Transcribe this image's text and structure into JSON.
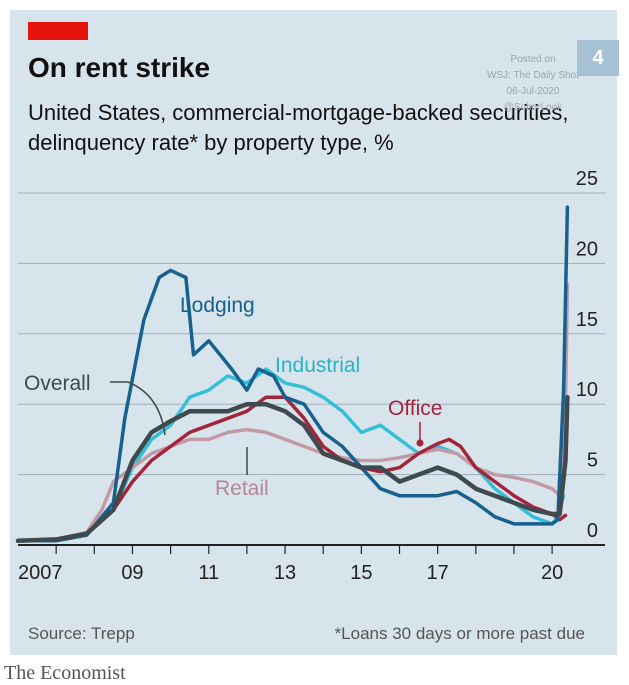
{
  "header": {
    "title": "On rent strike",
    "subtitle": "United States, commercial-mortgage-backed securities, delinquency rate* by property type, %"
  },
  "watermark": {
    "line1": "Posted on",
    "line2": "WSJ: The Daily Shot",
    "line3": "06-Jul-2020",
    "line4": "@SoberLook",
    "badge": "4"
  },
  "footer": {
    "source": "Source: Trepp",
    "footnote": "*Loans 30 days or more past due",
    "brand": "The Economist"
  },
  "colors": {
    "background": "#d8e4ec",
    "brand_red": "#e3120b",
    "Lodging": "#17618f",
    "Industrial": "#33c0d6",
    "Office": "#a3253b",
    "Retail": "#c29aa6",
    "Overall": "#3f4a4f"
  },
  "chart_data": {
    "type": "line",
    "title": "On rent strike",
    "subtitle": "United States, commercial-mortgage-backed securities, delinquency rate* by property type, %",
    "ylabel": "%",
    "ylim": [
      0,
      25
    ],
    "yticks": [
      0,
      5,
      10,
      15,
      20,
      25
    ],
    "y_axis_side": "right",
    "xlim": [
      2006.0,
      2020.6
    ],
    "xticks": [
      {
        "value": 2007,
        "label": "2007"
      },
      {
        "value": 2009,
        "label": "09"
      },
      {
        "value": 2011,
        "label": "11"
      },
      {
        "value": 2013,
        "label": "13"
      },
      {
        "value": 2015,
        "label": "15"
      },
      {
        "value": 2017,
        "label": "17"
      },
      {
        "value": 2020,
        "label": "20"
      }
    ],
    "grid": true,
    "series": [
      {
        "name": "Industrial",
        "x": [
          2006,
          2007,
          2007.8,
          2008.5,
          2009,
          2009.5,
          2010,
          2010.5,
          2011,
          2011.5,
          2012,
          2012.5,
          2013,
          2013.5,
          2014,
          2014.5,
          2015,
          2015.5,
          2016,
          2016.5,
          2017,
          2017.5,
          2018,
          2018.5,
          2019,
          2019.5,
          2020,
          2020.15,
          2020.3
        ],
        "y": [
          0.3,
          0.4,
          0.8,
          2.5,
          5.5,
          7.5,
          8.5,
          10.5,
          11,
          12,
          11.5,
          12.5,
          11.5,
          11.2,
          10.5,
          9.5,
          8,
          8.5,
          7.5,
          6.5,
          7,
          6.5,
          5.5,
          4,
          3,
          2,
          1.5,
          2,
          3.5
        ]
      },
      {
        "name": "Retail",
        "x": [
          2006,
          2007,
          2007.8,
          2008.2,
          2008.5,
          2009,
          2009.5,
          2010,
          2010.5,
          2011,
          2011.5,
          2012,
          2012.5,
          2013,
          2013.5,
          2014,
          2014.5,
          2015,
          2015.5,
          2016,
          2016.5,
          2017,
          2017.5,
          2018,
          2018.5,
          2019,
          2019.5,
          2020,
          2020.2,
          2020.35,
          2020.4
        ],
        "y": [
          0.3,
          0.4,
          0.9,
          2.5,
          4.5,
          5.5,
          6.5,
          7,
          7.5,
          7.5,
          8,
          8.2,
          8,
          7.5,
          7,
          6.5,
          6.2,
          6,
          6,
          6.2,
          6.5,
          6.8,
          6.5,
          5.5,
          5,
          4.8,
          4.5,
          4,
          3.5,
          10,
          18.5
        ]
      },
      {
        "name": "Office",
        "x": [
          2006,
          2007,
          2007.8,
          2008.5,
          2009,
          2009.5,
          2010,
          2010.5,
          2011,
          2011.5,
          2012,
          2012.5,
          2013,
          2013.5,
          2014,
          2014.5,
          2015,
          2015.5,
          2016,
          2016.5,
          2017,
          2017.3,
          2017.6,
          2018,
          2018.5,
          2019,
          2019.5,
          2020,
          2020.2,
          2020.35
        ],
        "y": [
          0.3,
          0.4,
          0.8,
          2.5,
          4.5,
          6,
          7,
          8,
          8.5,
          9,
          9.5,
          10.5,
          10.5,
          9,
          7,
          6,
          5.5,
          5.2,
          5.5,
          6.5,
          7.2,
          7.5,
          7,
          5.5,
          4.5,
          3.5,
          2.7,
          2.2,
          1.8,
          2.1
        ]
      },
      {
        "name": "Lodging",
        "x": [
          2006,
          2007,
          2007.8,
          2008.5,
          2008.8,
          2009.3,
          2009.7,
          2010,
          2010.4,
          2010.6,
          2010.8,
          2011,
          2011.3,
          2011.6,
          2012,
          2012.3,
          2012.7,
          2013,
          2013.5,
          2014,
          2014.5,
          2015,
          2015.5,
          2016,
          2016.5,
          2017,
          2017.5,
          2018,
          2018.5,
          2019,
          2019.5,
          2020,
          2020.15,
          2020.3,
          2020.4
        ],
        "y": [
          0.3,
          0.3,
          0.7,
          3,
          9,
          16,
          19,
          19.5,
          19,
          13.5,
          14,
          14.5,
          13.5,
          12.5,
          11,
          12.5,
          12,
          10.5,
          10,
          8,
          7,
          5.5,
          4,
          3.5,
          3.5,
          3.5,
          3.8,
          3,
          2,
          1.5,
          1.5,
          1.5,
          1.8,
          11,
          24
        ]
      },
      {
        "name": "Overall",
        "x": [
          2006,
          2007,
          2007.8,
          2008.5,
          2009,
          2009.5,
          2010,
          2010.5,
          2011,
          2011.5,
          2012,
          2012.5,
          2013,
          2013.5,
          2014,
          2014.5,
          2015,
          2015.5,
          2016,
          2016.5,
          2017,
          2017.5,
          2018,
          2018.5,
          2019,
          2019.5,
          2020,
          2020.2,
          2020.35,
          2020.4
        ],
        "y": [
          0.3,
          0.4,
          0.8,
          2.5,
          6,
          8,
          8.8,
          9.5,
          9.5,
          9.5,
          10,
          10,
          9.5,
          8.5,
          6.5,
          6,
          5.5,
          5.5,
          4.5,
          5,
          5.5,
          5,
          4,
          3.5,
          3,
          2.5,
          2.2,
          2.2,
          6,
          10.5
        ]
      }
    ],
    "labels": [
      {
        "series": "Lodging",
        "text": "Lodging"
      },
      {
        "series": "Industrial",
        "text": "Industrial"
      },
      {
        "series": "Overall",
        "text": "Overall"
      },
      {
        "series": "Office",
        "text": "Office"
      },
      {
        "series": "Retail",
        "text": "Retail"
      }
    ]
  }
}
